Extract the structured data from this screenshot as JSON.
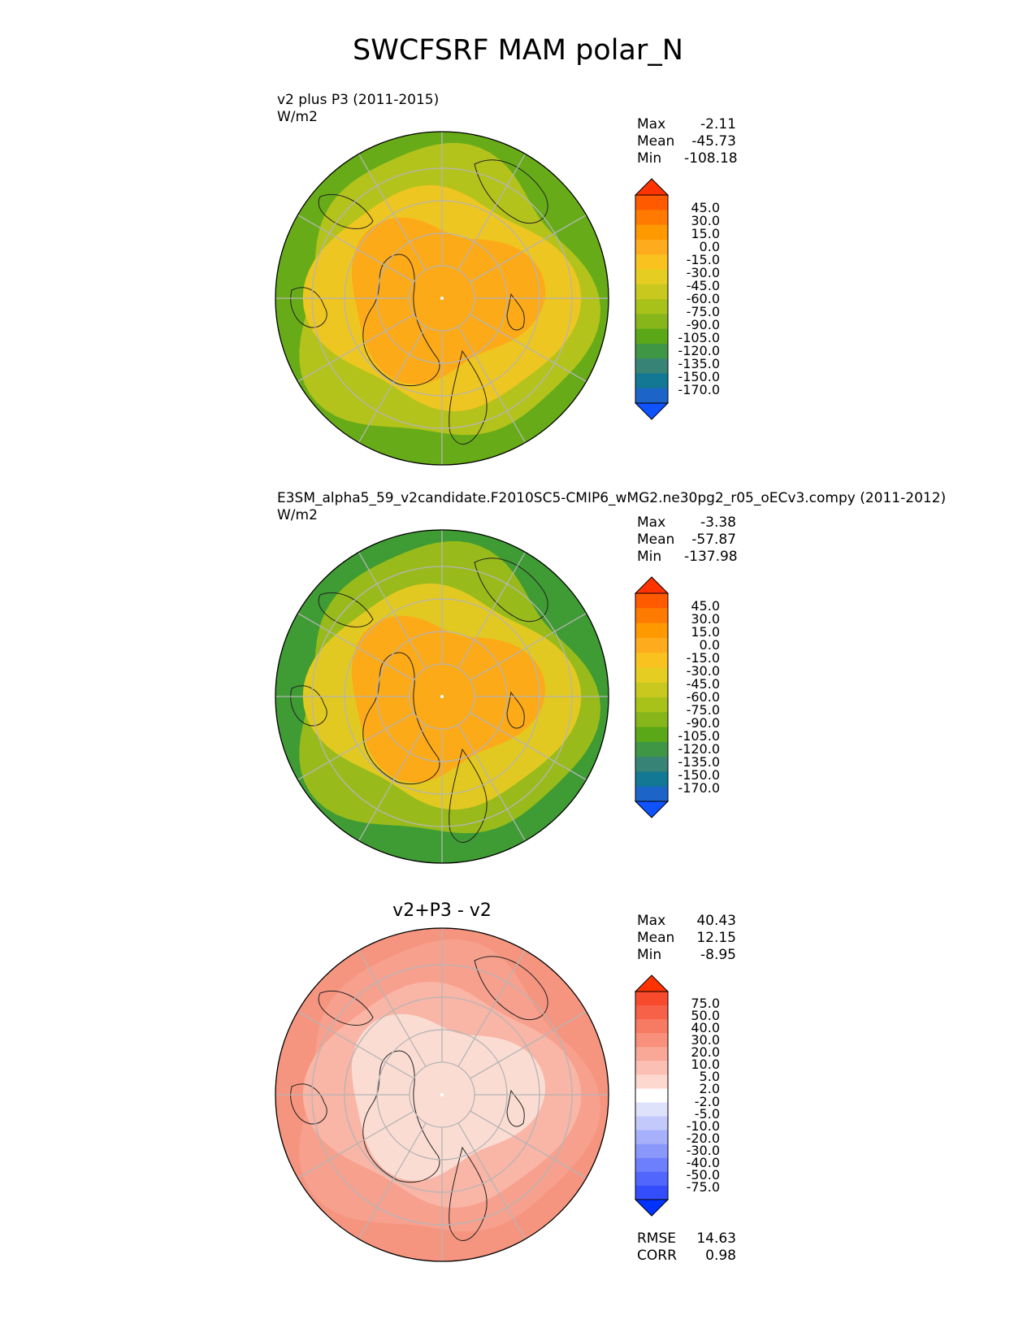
{
  "main_title": "SWCFSRF MAM polar_N",
  "chart_data": [
    {
      "type": "heatmap",
      "projection": "north polar stereographic",
      "title": "v2 plus P3 (2011-2015)",
      "units": "W/m2",
      "stats": [
        {
          "label": "Max",
          "value": "-2.11"
        },
        {
          "label": "Mean",
          "value": "-45.73"
        },
        {
          "label": "Min",
          "value": "-108.18"
        }
      ],
      "colorbar": {
        "levels": [
          "45.0",
          "30.0",
          "15.0",
          "0.0",
          "-15.0",
          "-30.0",
          "-45.0",
          "-60.0",
          "-75.0",
          "-90.0",
          "-105.0",
          "-120.0",
          "-135.0",
          "-150.0",
          "-170.0"
        ],
        "colors": [
          "#ff3300",
          "#ff5a00",
          "#ff7a00",
          "#ff9900",
          "#ffab1e",
          "#f9c21f",
          "#e6cd22",
          "#c8c81e",
          "#a9c219",
          "#86b61a",
          "#5aa817",
          "#3f9645",
          "#378476",
          "#127893",
          "#1c64c8",
          "#0f52ff"
        ],
        "extend": "both"
      },
      "map_colors": {
        "polar": "#fdaa18",
        "mid": "#eec621",
        "outer": "#b4c21c",
        "edge": "#67ac18"
      }
    },
    {
      "type": "heatmap",
      "projection": "north polar stereographic",
      "title": "E3SM_alpha5_59_v2candidate.F2010SC5-CMIP6_wMG2.ne30pg2_r05_oECv3.compy (2011-2012)",
      "units": "W/m2",
      "stats": [
        {
          "label": "Max",
          "value": "-3.38"
        },
        {
          "label": "Mean",
          "value": "-57.87"
        },
        {
          "label": "Min",
          "value": "-137.98"
        }
      ],
      "colorbar": {
        "levels": [
          "45.0",
          "30.0",
          "15.0",
          "0.0",
          "-15.0",
          "-30.0",
          "-45.0",
          "-60.0",
          "-75.0",
          "-90.0",
          "-105.0",
          "-120.0",
          "-135.0",
          "-150.0",
          "-170.0"
        ],
        "colors": [
          "#ff3300",
          "#ff5a00",
          "#ff7a00",
          "#ff9900",
          "#ffab1e",
          "#f9c21f",
          "#e6cd22",
          "#c8c81e",
          "#a9c219",
          "#86b61a",
          "#5aa817",
          "#3f9645",
          "#378476",
          "#127893",
          "#1c64c8",
          "#0f52ff"
        ],
        "extend": "both"
      },
      "map_colors": {
        "polar": "#fdaa18",
        "mid": "#e2c921",
        "outer": "#98bb1b",
        "edge": "#3f9b33"
      }
    },
    {
      "type": "heatmap",
      "projection": "north polar stereographic",
      "title": "v2+P3 - v2",
      "units": "",
      "stats": [
        {
          "label": "Max",
          "value": "40.43"
        },
        {
          "label": "Mean",
          "value": "12.15"
        },
        {
          "label": "Min",
          "value": "-8.95"
        }
      ],
      "colorbar": {
        "levels": [
          "75.0",
          "50.0",
          "40.0",
          "30.0",
          "20.0",
          "10.0",
          "5.0",
          "2.0",
          "-2.0",
          "-5.0",
          "-10.0",
          "-20.0",
          "-30.0",
          "-40.0",
          "-50.0",
          "-75.0"
        ],
        "colors": [
          "#ff3300",
          "#f84a2c",
          "#f66148",
          "#f77a62",
          "#f8907b",
          "#f9a897",
          "#fbc0b3",
          "#fdd8cf",
          "#ffffff",
          "#dfe2fb",
          "#c3c9fb",
          "#a6b0fb",
          "#8a98fb",
          "#6d7ffc",
          "#5066fd",
          "#334dfd",
          "#0033ff"
        ],
        "extend": "both"
      },
      "error_stats": [
        {
          "label": "RMSE",
          "value": "14.63"
        },
        {
          "label": "CORR",
          "value": "0.98"
        }
      ],
      "map_colors": {
        "polar": "#fbdcd3",
        "mid": "#f9b5a6",
        "outer": "#f7a08e",
        "edge": "#f6957f"
      }
    }
  ]
}
